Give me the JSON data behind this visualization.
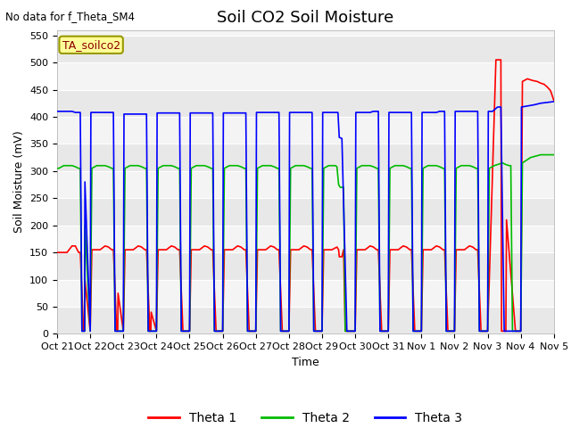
{
  "title": "Soil CO2 Soil Moisture",
  "no_data_text": "No data for f_Theta_SM4",
  "annotation_text": "TA_soilco2",
  "ylabel": "Soil Moisture (mV)",
  "xlabel": "Time",
  "ylim": [
    0,
    560
  ],
  "yticks": [
    0,
    50,
    100,
    150,
    200,
    250,
    300,
    350,
    400,
    450,
    500,
    550
  ],
  "xtick_labels": [
    "Oct 21",
    "Oct 22",
    "Oct 23",
    "Oct 24",
    "Oct 25",
    "Oct 26",
    "Oct 27",
    "Oct 28",
    "Oct 29",
    "Oct 30",
    "Oct 31",
    "Nov 1",
    "Nov 2",
    "Nov 3",
    "Nov 4",
    "Nov 5"
  ],
  "legend_labels": [
    "Theta 1",
    "Theta 2",
    "Theta 3"
  ],
  "line_colors": [
    "#ff0000",
    "#00bb00",
    "#0000ff"
  ],
  "band_colors": [
    "#e8e8e8",
    "#f4f4f4"
  ],
  "title_fontsize": 13,
  "label_fontsize": 9,
  "tick_fontsize": 8,
  "red_t": [
    0.0,
    0.3,
    0.45,
    0.55,
    0.65,
    0.7,
    0.8,
    0.83,
    0.84,
    1.0,
    1.05,
    1.3,
    1.45,
    1.55,
    1.65,
    1.7,
    1.8,
    1.83,
    1.84,
    2.0,
    2.05,
    2.3,
    2.45,
    2.55,
    2.65,
    2.7,
    2.8,
    2.83,
    2.84,
    3.0,
    3.05,
    3.3,
    3.45,
    3.55,
    3.65,
    3.7,
    3.8,
    3.83,
    3.84,
    4.0,
    4.05,
    4.3,
    4.45,
    4.55,
    4.65,
    4.7,
    4.8,
    4.83,
    4.84,
    5.0,
    5.05,
    5.3,
    5.45,
    5.55,
    5.65,
    5.7,
    5.8,
    5.83,
    5.84,
    6.0,
    6.05,
    6.3,
    6.45,
    6.55,
    6.65,
    6.7,
    6.8,
    6.83,
    6.84,
    7.0,
    7.05,
    7.3,
    7.45,
    7.55,
    7.65,
    7.7,
    7.8,
    7.83,
    7.84,
    8.0,
    8.05,
    8.3,
    8.45,
    8.5,
    8.52,
    8.6,
    8.65,
    8.7,
    8.84,
    9.0,
    9.05,
    9.3,
    9.45,
    9.55,
    9.65,
    9.7,
    9.8,
    9.83,
    9.84,
    10.0,
    10.05,
    10.3,
    10.45,
    10.55,
    10.65,
    10.7,
    10.8,
    10.83,
    10.84,
    11.0,
    11.05,
    11.3,
    11.45,
    11.55,
    11.65,
    11.7,
    11.8,
    11.83,
    11.84,
    12.0,
    12.05,
    12.3,
    12.45,
    12.55,
    12.65,
    12.7,
    12.8,
    12.83,
    12.84,
    13.0,
    13.05,
    13.25,
    13.4,
    13.42,
    13.55,
    13.57,
    13.84,
    14.0,
    14.05,
    14.2,
    14.35,
    14.5,
    14.6,
    14.7,
    14.8,
    14.9,
    15.0
  ],
  "red_v": [
    150,
    150,
    162,
    162,
    150,
    150,
    5,
    5,
    100,
    5,
    155,
    155,
    162,
    160,
    155,
    155,
    5,
    5,
    75,
    5,
    155,
    155,
    162,
    160,
    155,
    155,
    5,
    5,
    40,
    5,
    155,
    155,
    162,
    160,
    155,
    155,
    5,
    5,
    5,
    5,
    155,
    155,
    162,
    160,
    155,
    155,
    5,
    5,
    5,
    5,
    155,
    155,
    162,
    160,
    155,
    155,
    5,
    5,
    5,
    5,
    155,
    155,
    162,
    160,
    155,
    155,
    5,
    5,
    5,
    5,
    155,
    155,
    162,
    160,
    155,
    155,
    5,
    5,
    5,
    5,
    155,
    155,
    160,
    155,
    142,
    142,
    155,
    5,
    5,
    5,
    155,
    155,
    162,
    160,
    155,
    155,
    5,
    5,
    5,
    5,
    155,
    155,
    162,
    160,
    155,
    155,
    5,
    5,
    5,
    5,
    155,
    155,
    162,
    160,
    155,
    155,
    5,
    5,
    5,
    5,
    155,
    155,
    162,
    160,
    155,
    155,
    5,
    5,
    5,
    5,
    100,
    505,
    505,
    5,
    5,
    210,
    5,
    5,
    465,
    470,
    467,
    465,
    462,
    460,
    455,
    448,
    430
  ],
  "green_t": [
    0.0,
    0.05,
    0.2,
    0.45,
    0.55,
    0.65,
    0.7,
    0.75,
    0.83,
    0.84,
    1.0,
    1.05,
    1.2,
    1.45,
    1.55,
    1.65,
    1.7,
    1.75,
    1.83,
    1.84,
    2.0,
    2.05,
    2.2,
    2.45,
    2.55,
    2.65,
    2.7,
    2.75,
    2.83,
    2.84,
    3.0,
    3.05,
    3.2,
    3.45,
    3.55,
    3.65,
    3.7,
    3.75,
    3.83,
    3.84,
    4.0,
    4.05,
    4.2,
    4.45,
    4.55,
    4.65,
    4.7,
    4.75,
    4.83,
    4.84,
    5.0,
    5.05,
    5.2,
    5.45,
    5.55,
    5.65,
    5.7,
    5.75,
    5.83,
    5.84,
    6.0,
    6.05,
    6.2,
    6.45,
    6.55,
    6.65,
    6.7,
    6.75,
    6.83,
    6.84,
    7.0,
    7.05,
    7.2,
    7.45,
    7.55,
    7.65,
    7.7,
    7.75,
    7.83,
    7.84,
    8.0,
    8.05,
    8.2,
    8.4,
    8.45,
    8.5,
    8.55,
    8.65,
    8.7,
    8.84,
    9.0,
    9.05,
    9.2,
    9.45,
    9.55,
    9.65,
    9.7,
    9.75,
    9.83,
    9.84,
    10.0,
    10.05,
    10.2,
    10.45,
    10.55,
    10.65,
    10.7,
    10.75,
    10.83,
    10.84,
    11.0,
    11.05,
    11.2,
    11.45,
    11.55,
    11.65,
    11.7,
    11.75,
    11.83,
    11.84,
    12.0,
    12.05,
    12.2,
    12.45,
    12.55,
    12.65,
    12.7,
    12.75,
    12.83,
    12.84,
    13.0,
    13.05,
    13.2,
    13.45,
    13.55,
    13.65,
    13.7,
    13.75,
    13.83,
    13.84,
    14.0,
    14.05,
    14.3,
    14.6,
    15.0
  ],
  "green_v": [
    305,
    305,
    310,
    310,
    308,
    305,
    305,
    5,
    5,
    200,
    5,
    305,
    310,
    310,
    308,
    305,
    305,
    5,
    5,
    5,
    5,
    305,
    310,
    310,
    308,
    305,
    305,
    5,
    5,
    5,
    5,
    305,
    310,
    310,
    308,
    305,
    305,
    5,
    5,
    5,
    5,
    305,
    310,
    310,
    308,
    305,
    305,
    5,
    5,
    5,
    5,
    305,
    310,
    310,
    308,
    305,
    305,
    5,
    5,
    5,
    5,
    305,
    310,
    310,
    308,
    305,
    305,
    5,
    5,
    5,
    5,
    305,
    310,
    310,
    308,
    305,
    305,
    5,
    5,
    5,
    5,
    305,
    310,
    310,
    308,
    275,
    270,
    270,
    5,
    5,
    5,
    305,
    310,
    310,
    308,
    305,
    305,
    5,
    5,
    5,
    5,
    305,
    310,
    310,
    308,
    305,
    305,
    5,
    5,
    5,
    5,
    305,
    310,
    310,
    308,
    305,
    305,
    5,
    5,
    5,
    5,
    305,
    310,
    310,
    308,
    305,
    305,
    5,
    5,
    5,
    5,
    305,
    310,
    315,
    312,
    310,
    310,
    5,
    5,
    5,
    5,
    315,
    325,
    330,
    330
  ],
  "blue_t": [
    0.0,
    0.02,
    0.15,
    0.45,
    0.55,
    0.65,
    0.7,
    0.75,
    0.83,
    0.84,
    1.0,
    1.02,
    1.15,
    1.45,
    1.55,
    1.65,
    1.7,
    1.75,
    1.83,
    1.84,
    2.0,
    2.02,
    2.15,
    2.45,
    2.55,
    2.65,
    2.7,
    2.75,
    2.83,
    2.84,
    3.0,
    3.02,
    3.15,
    3.45,
    3.55,
    3.65,
    3.7,
    3.75,
    3.83,
    3.84,
    4.0,
    4.02,
    4.15,
    4.45,
    4.55,
    4.65,
    4.7,
    4.75,
    4.83,
    4.84,
    5.0,
    5.02,
    5.15,
    5.45,
    5.55,
    5.65,
    5.7,
    5.75,
    5.83,
    5.84,
    6.0,
    6.02,
    6.15,
    6.45,
    6.55,
    6.65,
    6.7,
    6.75,
    6.83,
    6.84,
    7.0,
    7.02,
    7.15,
    7.45,
    7.55,
    7.65,
    7.7,
    7.75,
    7.83,
    7.84,
    8.0,
    8.02,
    8.15,
    8.42,
    8.48,
    8.52,
    8.6,
    8.75,
    8.83,
    8.84,
    9.0,
    9.02,
    9.15,
    9.45,
    9.55,
    9.65,
    9.7,
    9.75,
    9.83,
    9.84,
    10.0,
    10.02,
    10.15,
    10.45,
    10.55,
    10.65,
    10.7,
    10.75,
    10.83,
    10.84,
    11.0,
    11.02,
    11.15,
    11.45,
    11.55,
    11.65,
    11.7,
    11.75,
    11.83,
    11.84,
    12.0,
    12.02,
    12.15,
    12.45,
    12.55,
    12.65,
    12.7,
    12.75,
    12.83,
    12.84,
    13.0,
    13.02,
    13.15,
    13.3,
    13.35,
    13.4,
    13.5,
    13.75,
    13.83,
    13.84,
    14.0,
    14.02,
    14.4,
    14.6,
    15.0
  ],
  "blue_v": [
    410,
    410,
    410,
    410,
    408,
    408,
    408,
    5,
    5,
    280,
    5,
    408,
    408,
    408,
    408,
    408,
    408,
    5,
    5,
    5,
    5,
    405,
    405,
    405,
    405,
    405,
    405,
    5,
    5,
    5,
    5,
    407,
    407,
    407,
    407,
    407,
    407,
    5,
    5,
    5,
    5,
    407,
    407,
    407,
    407,
    407,
    407,
    5,
    5,
    5,
    5,
    407,
    407,
    407,
    407,
    407,
    407,
    5,
    5,
    5,
    5,
    408,
    408,
    408,
    408,
    408,
    408,
    5,
    5,
    5,
    5,
    408,
    408,
    408,
    408,
    408,
    408,
    5,
    5,
    5,
    5,
    408,
    408,
    408,
    408,
    362,
    360,
    5,
    5,
    5,
    5,
    408,
    408,
    408,
    410,
    410,
    410,
    5,
    5,
    5,
    5,
    408,
    408,
    408,
    408,
    408,
    408,
    5,
    5,
    5,
    5,
    408,
    408,
    408,
    410,
    410,
    410,
    5,
    5,
    5,
    5,
    410,
    410,
    410,
    410,
    410,
    410,
    5,
    5,
    5,
    5,
    410,
    410,
    418,
    418,
    418,
    5,
    5,
    5,
    5,
    5,
    418,
    422,
    425,
    428
  ]
}
